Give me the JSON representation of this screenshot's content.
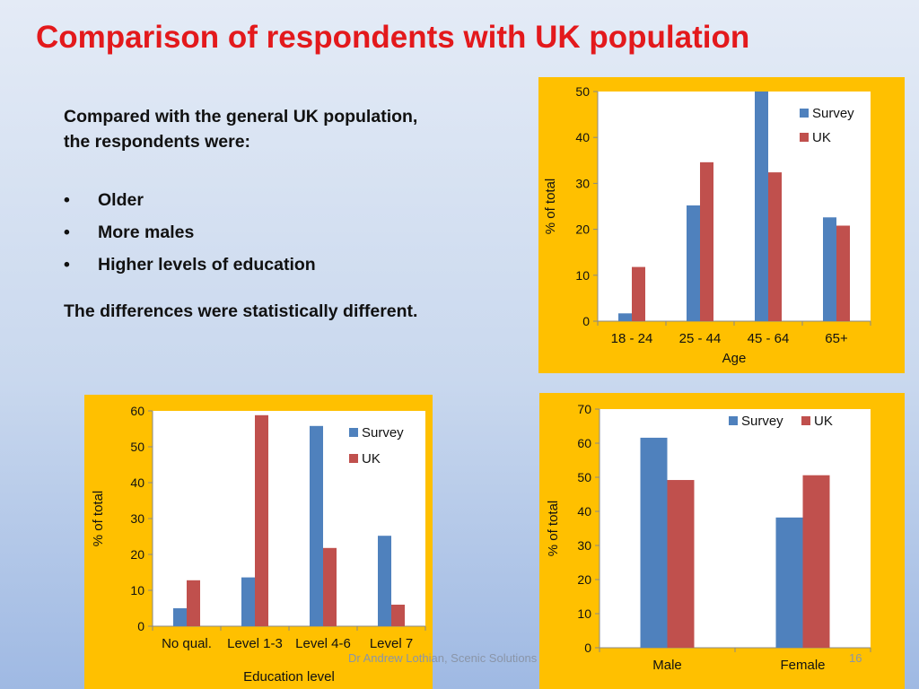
{
  "slide": {
    "title": "Comparison of respondents with UK population",
    "intro_line1": "Compared with the general UK population,",
    "intro_line2": "the respondents were:",
    "bullet_glyph": "•",
    "bullets": [
      "Older",
      "More males",
      "Higher levels of education"
    ],
    "conclusion": "The differences were statistically different.",
    "footer": "Dr Andrew Lothian, Scenic Solutions",
    "page_number": "16"
  },
  "colors": {
    "panel": "#ffc000",
    "survey": "#4f81bd",
    "uk": "#c0504d",
    "title": "#e3191c"
  },
  "chart_data": [
    {
      "id": "age",
      "type": "bar",
      "categories": [
        "18 - 24",
        "25 - 44",
        "45 - 64",
        "65+"
      ],
      "series": [
        {
          "name": "Survey",
          "values": [
            1.7,
            25.2,
            50,
            22.6
          ]
        },
        {
          "name": "UK",
          "values": [
            11.8,
            34.6,
            32.4,
            20.8
          ]
        }
      ],
      "xlabel": "Age",
      "ylabel": "% of total",
      "ylim": [
        0,
        50
      ],
      "yticks": [
        0,
        10,
        20,
        30,
        40,
        50
      ],
      "legend": "right",
      "grid": false
    },
    {
      "id": "education",
      "type": "bar",
      "categories": [
        "No qual.",
        "Level 1-3",
        "Level 4-6",
        "Level 7"
      ],
      "series": [
        {
          "name": "Survey",
          "values": [
            5,
            13.6,
            55.8,
            25.2
          ]
        },
        {
          "name": "UK",
          "values": [
            12.8,
            58.8,
            21.8,
            6
          ]
        }
      ],
      "xlabel": "Education level",
      "ylabel": "% of total",
      "ylim": [
        0,
        60
      ],
      "yticks": [
        0,
        10,
        20,
        30,
        40,
        50,
        60
      ],
      "legend": "right",
      "grid": false
    },
    {
      "id": "gender",
      "type": "bar",
      "categories": [
        "Male",
        "Female"
      ],
      "series": [
        {
          "name": "Survey",
          "values": [
            61.6,
            38.2
          ]
        },
        {
          "name": "UK",
          "values": [
            49.2,
            50.6
          ]
        }
      ],
      "xlabel": "",
      "ylabel": "% of total",
      "ylim": [
        0,
        70
      ],
      "yticks": [
        0,
        10,
        20,
        30,
        40,
        50,
        60,
        70
      ],
      "legend": "top",
      "grid": false
    }
  ]
}
